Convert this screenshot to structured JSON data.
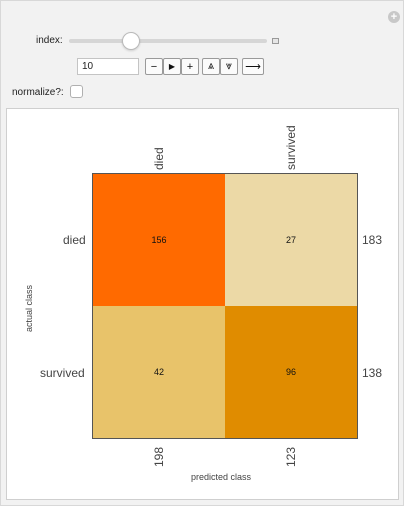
{
  "controls": {
    "index_label": "index:",
    "index_value": "10",
    "normalize_label": "normalize?:",
    "normalize_checked": false,
    "buttons": {
      "decrement": "−",
      "play": "▶",
      "increment": "+",
      "faster": "⩓",
      "slower": "⩔",
      "direction": "⟶"
    }
  },
  "chart_data": {
    "type": "heatmap",
    "row_categories": [
      "died",
      "survived"
    ],
    "col_categories": [
      "died",
      "survived"
    ],
    "values": [
      [
        156,
        27
      ],
      [
        42,
        96
      ]
    ],
    "row_totals": [
      "183",
      "138"
    ],
    "col_totals": [
      "198",
      "123"
    ],
    "ylabel": "actual class",
    "xlabel": "predicted class",
    "cell_colors": [
      [
        "#ff6a00",
        "#ecd9a6"
      ],
      [
        "#e8c36a",
        "#e08c00"
      ]
    ]
  }
}
